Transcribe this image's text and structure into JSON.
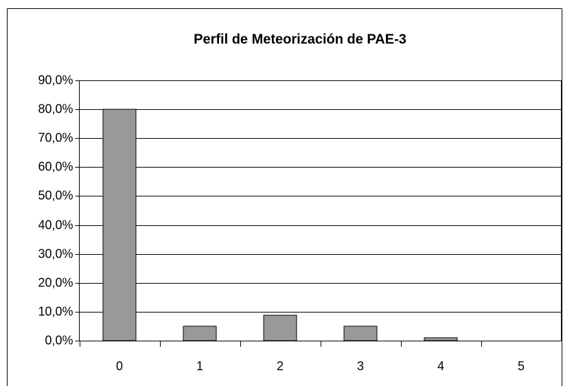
{
  "chart_data": {
    "type": "bar",
    "title": "Perfil de Meteorización de PAE-3",
    "categories": [
      "0",
      "1",
      "2",
      "3",
      "4",
      "5"
    ],
    "values": [
      80,
      5,
      8.8,
      5,
      1,
      0
    ],
    "color": "#999999",
    "ylim": [
      0,
      90
    ],
    "yticks": [
      {
        "value": 0,
        "label": "0,0%"
      },
      {
        "value": 10,
        "label": "10,0%"
      },
      {
        "value": 20,
        "label": "20,0%"
      },
      {
        "value": 30,
        "label": "30,0%"
      },
      {
        "value": 40,
        "label": "40,0%"
      },
      {
        "value": 50,
        "label": "50,0%"
      },
      {
        "value": 60,
        "label": "60,0%"
      },
      {
        "value": 70,
        "label": "70,0%"
      },
      {
        "value": 80,
        "label": "80,0%"
      },
      {
        "value": 90,
        "label": "90,0%"
      }
    ],
    "grid": true
  }
}
